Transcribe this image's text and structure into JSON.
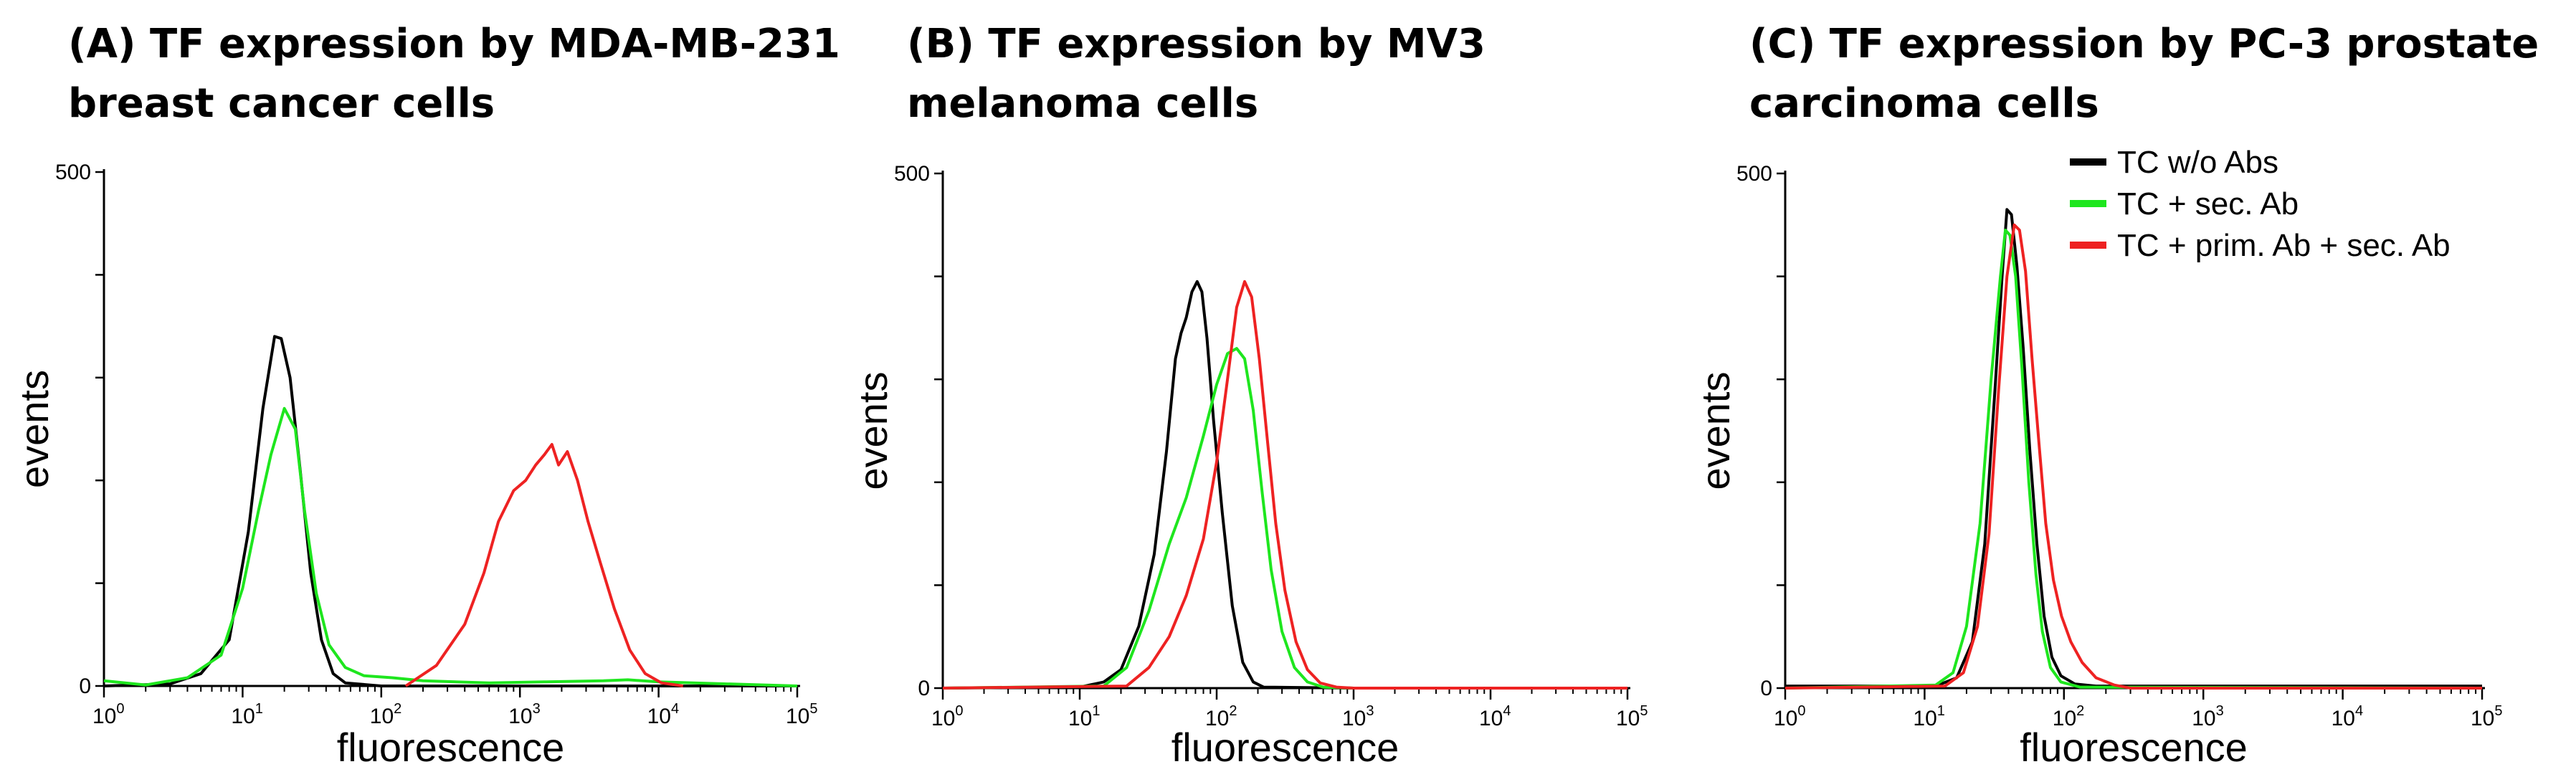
{
  "colors": {
    "black": "#000000",
    "green": "#1ee61e",
    "red": "#ee2222"
  },
  "legend": [
    {
      "label": "TC w/o Abs",
      "color": "#000000"
    },
    {
      "label": "TC + sec. Ab",
      "color": "#1ee61e"
    },
    {
      "label": "TC + prim. Ab + sec. Ab",
      "color": "#ee2222"
    }
  ],
  "chart_data": [
    {
      "type": "line",
      "title_lines": [
        "(A) TF expression by MDA-MB-231",
        "breast cancer cells"
      ],
      "xlabel": "fluorescence",
      "ylabel": "events",
      "xscale": "log",
      "xlim": [
        1,
        100000
      ],
      "ylim": [
        0,
        500
      ],
      "ytick_labels": [
        "0",
        "500"
      ],
      "yticks_minor": [
        100,
        200,
        300,
        400
      ],
      "xtick_base": "10",
      "xtick_exponents": [
        "0",
        "1",
        "2",
        "3",
        "4",
        "5"
      ],
      "series": [
        {
          "name": "TC w/o Abs",
          "color": "#000000",
          "x": [
            1,
            3,
            5,
            8,
            11,
            14,
            17,
            19,
            22,
            26,
            31,
            37,
            45,
            55,
            100,
            1000,
            100000
          ],
          "y": [
            0,
            2,
            12,
            45,
            150,
            270,
            340,
            338,
            300,
            210,
            110,
            45,
            12,
            3,
            0,
            0,
            0
          ]
        },
        {
          "name": "TC + sec. Ab",
          "color": "#1ee61e",
          "x": [
            1,
            2,
            4,
            7,
            10,
            13,
            16,
            20,
            24,
            28,
            34,
            42,
            55,
            75,
            120,
            200,
            600,
            1500,
            4000,
            6000,
            10000,
            100000
          ],
          "y": [
            5,
            1,
            8,
            30,
            95,
            170,
            225,
            270,
            250,
            170,
            90,
            40,
            18,
            10,
            8,
            5,
            3,
            4,
            5,
            6,
            4,
            0
          ]
        },
        {
          "name": "TC + prim. Ab + sec. Ab",
          "color": "#ee2222",
          "x": [
            150,
            250,
            400,
            550,
            700,
            900,
            1100,
            1300,
            1500,
            1700,
            1900,
            2200,
            2600,
            3100,
            3800,
            4800,
            6200,
            8000,
            10500,
            15000
          ],
          "y": [
            0,
            20,
            60,
            110,
            160,
            190,
            200,
            215,
            225,
            235,
            215,
            228,
            200,
            160,
            120,
            75,
            35,
            12,
            3,
            0
          ]
        }
      ]
    },
    {
      "type": "line",
      "title_lines": [
        "(B) TF expression by MV3",
        "melanoma cells"
      ],
      "xlabel": "fluorescence",
      "ylabel": "events",
      "xscale": "log",
      "xlim": [
        1,
        100000
      ],
      "ylim": [
        0,
        500
      ],
      "ytick_labels": [
        "0",
        "500"
      ],
      "yticks_minor": [
        100,
        200,
        300,
        400
      ],
      "xtick_base": "10",
      "xtick_exponents": [
        "0",
        "1",
        "2",
        "3",
        "4",
        "5"
      ],
      "series": [
        {
          "name": "TC w/o Abs",
          "color": "#000000",
          "x": [
            1,
            10,
            15,
            20,
            27,
            35,
            43,
            50,
            55,
            60,
            66,
            72,
            78,
            85,
            95,
            110,
            130,
            155,
            185,
            220,
            1000,
            100000
          ],
          "y": [
            0,
            1,
            6,
            18,
            60,
            130,
            230,
            320,
            345,
            360,
            385,
            395,
            385,
            340,
            260,
            170,
            80,
            25,
            6,
            1,
            0,
            0
          ]
        },
        {
          "name": "TC + sec. Ab",
          "color": "#1ee61e",
          "x": [
            1,
            15,
            22,
            32,
            45,
            60,
            80,
            100,
            120,
            140,
            160,
            185,
            215,
            250,
            300,
            370,
            460,
            600,
            1000,
            100000
          ],
          "y": [
            0,
            2,
            20,
            75,
            140,
            185,
            245,
            295,
            325,
            330,
            320,
            270,
            190,
            115,
            55,
            20,
            6,
            1,
            0,
            0
          ]
        },
        {
          "name": "TC + prim. Ab + sec. Ab",
          "color": "#ee2222",
          "x": [
            1,
            22,
            32,
            45,
            60,
            80,
            100,
            120,
            140,
            160,
            180,
            205,
            235,
            270,
            315,
            380,
            460,
            570,
            750,
            1000,
            100000
          ],
          "y": [
            0,
            2,
            20,
            50,
            90,
            145,
            220,
            300,
            370,
            395,
            380,
            320,
            240,
            160,
            95,
            45,
            18,
            5,
            1,
            0,
            0
          ]
        }
      ]
    },
    {
      "type": "line",
      "title_lines": [
        "(C) TF expression by PC-3 prostate",
        "carcinoma cells"
      ],
      "xlabel": "fluorescence",
      "ylabel": "events",
      "xscale": "log",
      "xlim": [
        1,
        100000
      ],
      "ylim": [
        0,
        500
      ],
      "ytick_labels": [
        "0",
        "500"
      ],
      "yticks_minor": [
        100,
        200,
        300,
        400
      ],
      "xtick_base": "10",
      "xtick_exponents": [
        "0",
        "1",
        "2",
        "3",
        "4",
        "5"
      ],
      "series": [
        {
          "name": "TC w/o Abs",
          "color": "#000000",
          "x": [
            1,
            12,
            17,
            22,
            27,
            32,
            36,
            39,
            42,
            46,
            51,
            57,
            64,
            72,
            82,
            95,
            120,
            170,
            100000
          ],
          "y": [
            2,
            2,
            10,
            45,
            140,
            290,
            400,
            465,
            460,
            410,
            330,
            230,
            140,
            70,
            30,
            12,
            4,
            2,
            2
          ]
        },
        {
          "name": "TC + sec. Ab",
          "color": "#1ee61e",
          "x": [
            1,
            12,
            16,
            20,
            25,
            30,
            35,
            38,
            41,
            45,
            50,
            56,
            63,
            70,
            80,
            95,
            130,
            100000
          ],
          "y": [
            0,
            3,
            15,
            60,
            160,
            300,
            400,
            445,
            440,
            400,
            310,
            200,
            110,
            55,
            20,
            6,
            1,
            0
          ]
        },
        {
          "name": "TC + prim. Ab + sec. Ab",
          "color": "#ee2222",
          "x": [
            1,
            14,
            19,
            24,
            29,
            34,
            39,
            44,
            48,
            53,
            59,
            66,
            74,
            84,
            96,
            112,
            135,
            170,
            230,
            300,
            100000
          ],
          "y": [
            0,
            2,
            15,
            60,
            150,
            290,
            400,
            450,
            445,
            405,
            320,
            240,
            160,
            105,
            70,
            45,
            25,
            10,
            3,
            0,
            0
          ]
        }
      ]
    }
  ]
}
